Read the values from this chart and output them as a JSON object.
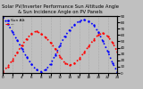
{
  "title": "Solar PV/Inverter Performance Sun Altitude Angle & Sun Incidence Angle on PV Panels",
  "legend_line1": "Sun Alt",
  "legend_line2": "---",
  "background_color": "#c0c0c0",
  "grid_color": "#888888",
  "plot_bg": "#c0c0c0",
  "x_values": [
    0,
    1,
    2,
    3,
    4,
    5,
    6,
    7,
    8,
    9,
    10,
    11,
    12,
    13,
    14,
    15,
    16,
    17,
    18,
    19,
    20,
    21,
    22,
    23,
    24
  ],
  "blue_values": [
    88,
    78,
    65,
    52,
    38,
    25,
    14,
    5,
    2,
    5,
    14,
    28,
    44,
    58,
    68,
    76,
    82,
    84,
    82,
    76,
    65,
    50,
    34,
    16,
    2
  ],
  "red_values": [
    2,
    10,
    20,
    32,
    44,
    54,
    62,
    66,
    62,
    56,
    48,
    38,
    26,
    16,
    12,
    15,
    22,
    32,
    42,
    52,
    60,
    63,
    58,
    48,
    34
  ],
  "ylim": [
    0,
    90
  ],
  "yticks_right": [
    0,
    10,
    20,
    30,
    40,
    50,
    60,
    70,
    80,
    90
  ],
  "xlim": [
    0,
    24
  ],
  "title_fontsize": 3.8,
  "tick_fontsize": 3.0,
  "legend_fontsize": 3.2,
  "line_width": 1.2,
  "dot_size": 1.5
}
